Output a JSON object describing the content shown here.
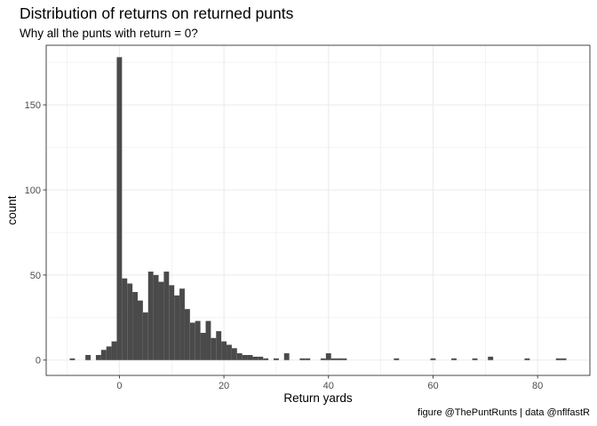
{
  "title": "Distribution of returns on returned punts",
  "subtitle": "Why all the punts with return = 0?",
  "caption": "figure @ThePuntRunts | data @nflfastR",
  "colors": {
    "bar": "#4a4a4a",
    "grid": "#ebebeb",
    "panel_border": "#333333"
  },
  "chart_data": {
    "type": "bar",
    "title": "Distribution of returns on returned punts",
    "subtitle": "Why all the punts with return = 0?",
    "xlabel": "Return yards",
    "ylabel": "count",
    "xlim": [
      -14,
      90
    ],
    "ylim": [
      -9,
      185
    ],
    "x_ticks": [
      0,
      20,
      40,
      60,
      80
    ],
    "y_ticks": [
      0,
      50,
      100,
      150
    ],
    "grid": true,
    "binwidth": 1,
    "bins": [
      {
        "x": -9,
        "count": 1
      },
      {
        "x": -6,
        "count": 3
      },
      {
        "x": -4,
        "count": 3
      },
      {
        "x": -3,
        "count": 6
      },
      {
        "x": -2,
        "count": 8
      },
      {
        "x": -1,
        "count": 11
      },
      {
        "x": 0,
        "count": 178
      },
      {
        "x": 1,
        "count": 48
      },
      {
        "x": 2,
        "count": 45
      },
      {
        "x": 3,
        "count": 40
      },
      {
        "x": 4,
        "count": 35
      },
      {
        "x": 5,
        "count": 28
      },
      {
        "x": 6,
        "count": 52
      },
      {
        "x": 7,
        "count": 50
      },
      {
        "x": 8,
        "count": 46
      },
      {
        "x": 9,
        "count": 52
      },
      {
        "x": 10,
        "count": 44
      },
      {
        "x": 11,
        "count": 38
      },
      {
        "x": 12,
        "count": 42
      },
      {
        "x": 13,
        "count": 30
      },
      {
        "x": 14,
        "count": 22
      },
      {
        "x": 15,
        "count": 23
      },
      {
        "x": 16,
        "count": 16
      },
      {
        "x": 17,
        "count": 23
      },
      {
        "x": 18,
        "count": 13
      },
      {
        "x": 19,
        "count": 17
      },
      {
        "x": 20,
        "count": 11
      },
      {
        "x": 21,
        "count": 9
      },
      {
        "x": 22,
        "count": 7
      },
      {
        "x": 23,
        "count": 4
      },
      {
        "x": 24,
        "count": 3
      },
      {
        "x": 25,
        "count": 3
      },
      {
        "x": 26,
        "count": 2
      },
      {
        "x": 27,
        "count": 2
      },
      {
        "x": 28,
        "count": 1
      },
      {
        "x": 30,
        "count": 1
      },
      {
        "x": 32,
        "count": 4
      },
      {
        "x": 35,
        "count": 1
      },
      {
        "x": 36,
        "count": 1
      },
      {
        "x": 39,
        "count": 1
      },
      {
        "x": 40,
        "count": 4
      },
      {
        "x": 41,
        "count": 1
      },
      {
        "x": 42,
        "count": 1
      },
      {
        "x": 43,
        "count": 1
      },
      {
        "x": 53,
        "count": 1
      },
      {
        "x": 60,
        "count": 1
      },
      {
        "x": 64,
        "count": 1
      },
      {
        "x": 68,
        "count": 1
      },
      {
        "x": 71,
        "count": 2
      },
      {
        "x": 78,
        "count": 1
      },
      {
        "x": 84,
        "count": 1
      },
      {
        "x": 85,
        "count": 1
      }
    ]
  }
}
